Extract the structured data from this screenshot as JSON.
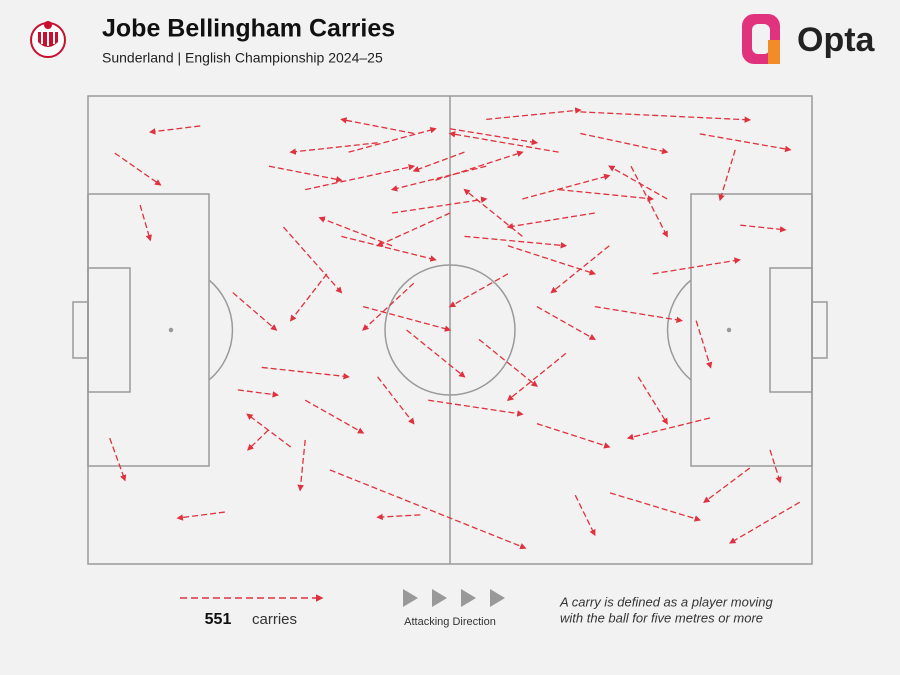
{
  "header": {
    "title": "Jobe Bellingham Carries",
    "subtitle": "Sunderland | English Championship 2024–25",
    "brand": "Opta"
  },
  "chart_data": {
    "type": "carry-map",
    "color": "#e0323e",
    "xlim": [
      0,
      100
    ],
    "ylim": [
      0,
      100
    ],
    "carries": [
      [
        15.5,
        93.6,
        8.6,
        92.3
      ],
      [
        3.7,
        87.8,
        10,
        81
      ],
      [
        7.2,
        76.7,
        8.6,
        69.2
      ],
      [
        3,
        26.9,
        5.1,
        17.9
      ],
      [
        18.9,
        11.1,
        12.4,
        9.8
      ],
      [
        45.9,
        10.5,
        40,
        10
      ],
      [
        33.4,
        20.1,
        60.4,
        3.4
      ],
      [
        67.3,
        14.7,
        70,
        6.2
      ],
      [
        98.3,
        13.2,
        88.7,
        4.5
      ],
      [
        91.4,
        20.5,
        85.1,
        13.2
      ],
      [
        94.2,
        24.4,
        95.6,
        17.5
      ],
      [
        85.9,
        31.2,
        74.6,
        26.9
      ],
      [
        89.4,
        88.5,
        87.3,
        77.8
      ],
      [
        68,
        96.6,
        91.4,
        94.9
      ],
      [
        84.5,
        91.9,
        97,
        88.5
      ],
      [
        90.1,
        72.4,
        96.3,
        71.4
      ],
      [
        72.1,
        15.2,
        84.5,
        9.4
      ],
      [
        30,
        26.5,
        29.3,
        15.8
      ],
      [
        24.9,
        28.6,
        22.1,
        24.4
      ],
      [
        20.7,
        37.2,
        26.2,
        36.1
      ],
      [
        30,
        80,
        45,
        85
      ],
      [
        40,
        90,
        28,
        88
      ],
      [
        50,
        93,
        62,
        90
      ],
      [
        55,
        85,
        42,
        80
      ],
      [
        60,
        78,
        72,
        83
      ],
      [
        35,
        70,
        48,
        65
      ],
      [
        45,
        60,
        38,
        50
      ],
      [
        52,
        70,
        66,
        68
      ],
      [
        65,
        88,
        50,
        92
      ],
      [
        70,
        75,
        58,
        72
      ],
      [
        75,
        85,
        80,
        70
      ],
      [
        42,
        75,
        55,
        78
      ],
      [
        33,
        62,
        28,
        52
      ],
      [
        48,
        82,
        60,
        88
      ],
      [
        58,
        62,
        50,
        55
      ],
      [
        62,
        55,
        70,
        48
      ],
      [
        38,
        55,
        50,
        50
      ],
      [
        27,
        72,
        35,
        58
      ],
      [
        45,
        92,
        35,
        95
      ],
      [
        68,
        92,
        80,
        88
      ],
      [
        78,
        62,
        90,
        65
      ],
      [
        55,
        95,
        68,
        97
      ],
      [
        36,
        88,
        48,
        93
      ],
      [
        50,
        75,
        40,
        68
      ],
      [
        60,
        70,
        52,
        80
      ],
      [
        72,
        68,
        64,
        58
      ],
      [
        80,
        78,
        72,
        85
      ],
      [
        44,
        50,
        52,
        40
      ],
      [
        54,
        48,
        62,
        38
      ],
      [
        66,
        45,
        58,
        35
      ],
      [
        40,
        40,
        45,
        30
      ],
      [
        30,
        35,
        38,
        28
      ],
      [
        47,
        35,
        60,
        32
      ],
      [
        62,
        30,
        72,
        25
      ],
      [
        24,
        42,
        36,
        40
      ],
      [
        28,
        25,
        22,
        32
      ],
      [
        20,
        58,
        26,
        50
      ],
      [
        25,
        85,
        35,
        82
      ],
      [
        52,
        88,
        45,
        84
      ],
      [
        65,
        80,
        78,
        78
      ],
      [
        58,
        68,
        70,
        62
      ],
      [
        42,
        68,
        32,
        74
      ],
      [
        70,
        55,
        82,
        52
      ],
      [
        84,
        52,
        86,
        42
      ],
      [
        76,
        40,
        80,
        30
      ]
    ]
  },
  "legend": {
    "count": "551",
    "count_label": "carries",
    "direction": "Attacking Direction",
    "note_lines": [
      "A carry is defined as a player moving",
      "with the ball for five metres or more"
    ]
  }
}
